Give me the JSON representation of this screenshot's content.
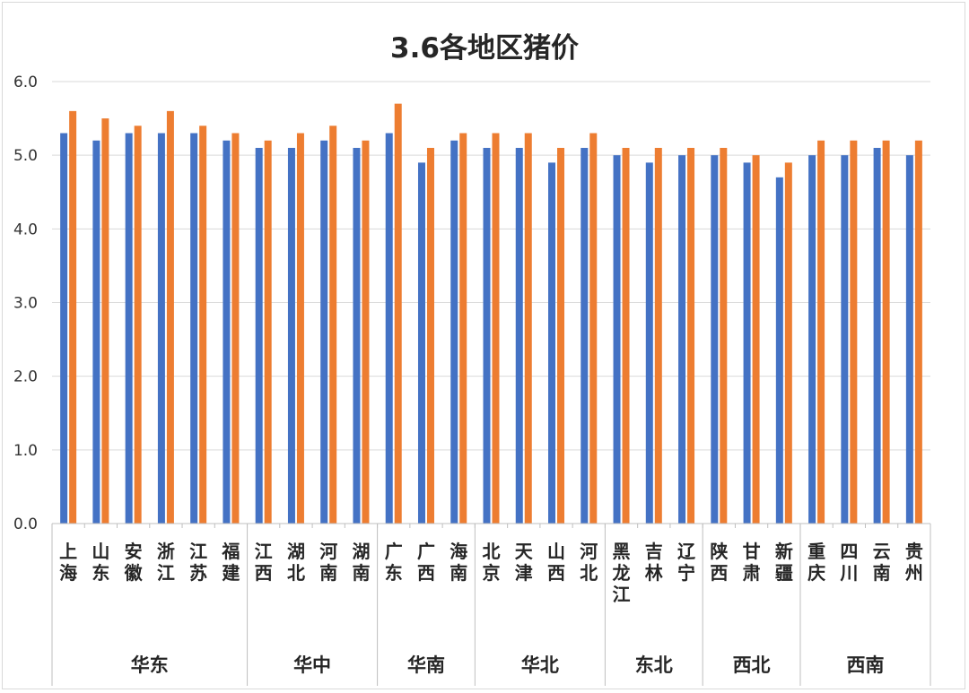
{
  "chart_data": {
    "type": "bar",
    "title": "3.6各地区猪价",
    "xlabel": "",
    "ylabel": "",
    "ylim": [
      0,
      6
    ],
    "yticks": [
      "0.0",
      "1.0",
      "2.0",
      "3.0",
      "4.0",
      "5.0",
      "6.0"
    ],
    "grid": true,
    "legend": "none",
    "categories": [
      "上海",
      "山东",
      "安徽",
      "浙江",
      "江苏",
      "福建",
      "江西",
      "湖北",
      "河南",
      "湖南",
      "广东",
      "广西",
      "海南",
      "北京",
      "天津",
      "山西",
      "河北",
      "黑龙江",
      "吉林",
      "辽宁",
      "陕西",
      "甘肃",
      "新疆",
      "重庆",
      "四川",
      "云南",
      "贵州"
    ],
    "groups": [
      {
        "label": "华东",
        "count": 6
      },
      {
        "label": "华中",
        "count": 4
      },
      {
        "label": "华南",
        "count": 3
      },
      {
        "label": "华北",
        "count": 4
      },
      {
        "label": "东北",
        "count": 3
      },
      {
        "label": "西北",
        "count": 3
      },
      {
        "label": "西南",
        "count": 4
      }
    ],
    "series": [
      {
        "color": "#4472c4",
        "values": [
          5.3,
          5.2,
          5.3,
          5.3,
          5.3,
          5.2,
          5.1,
          5.1,
          5.2,
          5.1,
          5.3,
          4.9,
          5.2,
          5.1,
          5.1,
          4.9,
          5.1,
          5.0,
          4.9,
          5.0,
          5.0,
          4.9,
          4.7,
          5.0,
          5.0,
          5.1,
          5.0
        ]
      },
      {
        "color": "#ed7d31",
        "values": [
          5.6,
          5.5,
          5.4,
          5.6,
          5.4,
          5.3,
          5.2,
          5.3,
          5.4,
          5.2,
          5.7,
          5.1,
          5.3,
          5.3,
          5.3,
          5.1,
          5.3,
          5.1,
          5.1,
          5.1,
          5.1,
          5.0,
          4.9,
          5.2,
          5.2,
          5.2,
          5.2
        ]
      }
    ]
  }
}
